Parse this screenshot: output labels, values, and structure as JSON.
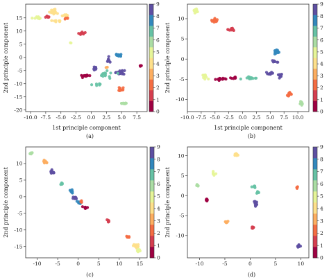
{
  "figure": {
    "captions": [
      "(a)",
      "(b)",
      "(c)",
      "(d)"
    ]
  },
  "colorbar": {
    "ticks": [
      "0",
      "1",
      "2",
      "3",
      "4",
      "5",
      "6",
      "7",
      "8",
      "9"
    ],
    "colormap": "Spectral",
    "colors": [
      "#9e0142",
      "#d53e4f",
      "#f46d43",
      "#fdae61",
      "#fee08b",
      "#e6f598",
      "#abdda4",
      "#66c2a5",
      "#3288bd",
      "#5e4fa2"
    ]
  },
  "chart_data": [
    {
      "type": "scatter",
      "caption": "(a)",
      "xlabel": "1st principle component",
      "ylabel": "2nd principle component",
      "xlim": [
        -10.8,
        9.2
      ],
      "ylim": [
        -20.6,
        20.2
      ],
      "xticks": [
        -10.0,
        -7.5,
        -5.0,
        -2.5,
        0.0,
        2.5,
        5.0,
        7.5
      ],
      "yticks": [
        -20,
        -15,
        -10,
        -5,
        0,
        5,
        10,
        15
      ],
      "clusters": [
        {
          "label": 4,
          "x": -6.3,
          "y": 17.5,
          "sx": 0.6,
          "sy": 1.0,
          "n": 14
        },
        {
          "label": 5,
          "x": -8.8,
          "y": 15.0,
          "sx": 0.8,
          "sy": 0.5,
          "n": 12
        },
        {
          "label": 4,
          "x": -4.5,
          "y": 16.0,
          "sx": 0.8,
          "sy": 0.6,
          "n": 12
        },
        {
          "label": 4,
          "x": -5.8,
          "y": 13.8,
          "sx": 0.6,
          "sy": 0.4,
          "n": 8
        },
        {
          "label": 1,
          "x": -7.2,
          "y": 15.5,
          "sx": 0.4,
          "sy": 0.4,
          "n": 8
        },
        {
          "label": 2,
          "x": -4.2,
          "y": 14.8,
          "sx": 0.3,
          "sy": 0.3,
          "n": 5
        },
        {
          "label": 1,
          "x": -1.5,
          "y": 9.0,
          "sx": 0.45,
          "sy": 0.45,
          "n": 14
        },
        {
          "label": 5,
          "x": -3.4,
          "y": 5.5,
          "sx": 0.1,
          "sy": 0.1,
          "n": 2
        },
        {
          "label": 8,
          "x": 4.5,
          "y": 0.8,
          "sx": 0.55,
          "sy": 0.55,
          "n": 20
        },
        {
          "label": 9,
          "x": 2.8,
          "y": -0.8,
          "sx": 0.3,
          "sy": 1.0,
          "n": 9
        },
        {
          "label": 9,
          "x": 0.4,
          "y": -4.0,
          "sx": 0.7,
          "sy": 0.7,
          "n": 10
        },
        {
          "label": 9,
          "x": 4.8,
          "y": -5.8,
          "sx": 0.6,
          "sy": 0.9,
          "n": 22
        },
        {
          "label": 7,
          "x": 2.6,
          "y": -6.5,
          "sx": 1.0,
          "sy": 1.0,
          "n": 14
        },
        {
          "label": 0,
          "x": -0.8,
          "y": -7.0,
          "sx": 1.0,
          "sy": 0.5,
          "n": 12
        },
        {
          "label": 3,
          "x": 2.5,
          "y": -3.8,
          "sx": 0.2,
          "sy": 0.2,
          "n": 3
        },
        {
          "label": 7,
          "x": 1.0,
          "y": -10.3,
          "sx": 0.6,
          "sy": 0.4,
          "n": 6
        },
        {
          "label": 2,
          "x": 4.8,
          "y": -12.0,
          "sx": 0.55,
          "sy": 0.8,
          "n": 12
        },
        {
          "label": 6,
          "x": 5.3,
          "y": -17.5,
          "sx": 0.5,
          "sy": 0.25,
          "n": 12
        },
        {
          "label": 0,
          "x": 8.2,
          "y": -3.2,
          "sx": 0.3,
          "sy": 0.3,
          "n": 5
        }
      ]
    },
    {
      "type": "scatter",
      "caption": "(b)",
      "xlabel": "1st principle component",
      "ylabel": "2nd principle component",
      "xlim": [
        -10.0,
        12.0
      ],
      "ylim": [
        -13.0,
        13.6
      ],
      "xticks": [
        -10.0,
        -7.5,
        -5.0,
        -2.5,
        0.0,
        2.5,
        5.0,
        7.5,
        10.0
      ],
      "yticks": [
        -10,
        -5,
        0,
        5,
        10
      ],
      "clusters": [
        {
          "label": 5,
          "x": -8.5,
          "y": 12.0,
          "sx": 0.35,
          "sy": 0.5,
          "n": 14
        },
        {
          "label": 2,
          "x": -5.0,
          "y": 9.5,
          "sx": 0.5,
          "sy": 0.4,
          "n": 14
        },
        {
          "label": 1,
          "x": -2.0,
          "y": 7.3,
          "sx": 0.5,
          "sy": 0.35,
          "n": 14
        },
        {
          "label": 8,
          "x": 6.2,
          "y": 1.8,
          "sx": 0.45,
          "sy": 0.45,
          "n": 16
        },
        {
          "label": 9,
          "x": 5.8,
          "y": -0.5,
          "sx": 0.5,
          "sy": 0.3,
          "n": 10
        },
        {
          "label": 5,
          "x": -6.8,
          "y": -4.5,
          "sx": 0.5,
          "sy": 0.8,
          "n": 10
        },
        {
          "label": 0,
          "x": -4.0,
          "y": -5.0,
          "sx": 0.7,
          "sy": 0.25,
          "n": 16
        },
        {
          "label": 0,
          "x": -1.5,
          "y": -4.6,
          "sx": 0.5,
          "sy": 0.3,
          "n": 8
        },
        {
          "label": 7,
          "x": 1.5,
          "y": -4.7,
          "sx": 1.3,
          "sy": 0.5,
          "n": 16
        },
        {
          "label": 9,
          "x": 5.0,
          "y": -3.5,
          "sx": 0.5,
          "sy": 0.5,
          "n": 10
        },
        {
          "label": 9,
          "x": 6.8,
          "y": -4.2,
          "sx": 0.4,
          "sy": 0.6,
          "n": 14
        },
        {
          "label": 2,
          "x": 8.5,
          "y": -8.7,
          "sx": 0.45,
          "sy": 0.45,
          "n": 14
        },
        {
          "label": 6,
          "x": 10.6,
          "y": -11.0,
          "sx": 0.35,
          "sy": 0.35,
          "n": 12
        }
      ]
    },
    {
      "type": "scatter",
      "caption": "(c)",
      "xlabel": "",
      "ylabel": "2nd principle component",
      "xlim": [
        -12.8,
        16.8
      ],
      "ylim": [
        -18.4,
        15.0
      ],
      "xticks": [
        -10,
        -5,
        0,
        5,
        10,
        15
      ],
      "yticks": [
        -15,
        -10,
        -5,
        0,
        5,
        10
      ],
      "clusters": [
        {
          "label": 6,
          "x": -11.5,
          "y": 13.2,
          "sx": 0.3,
          "sy": 0.35,
          "n": 10
        },
        {
          "label": 3,
          "x": -8.0,
          "y": 10.5,
          "sx": 0.5,
          "sy": 0.35,
          "n": 12
        },
        {
          "label": 9,
          "x": -6.2,
          "y": 7.5,
          "sx": 0.5,
          "sy": 0.6,
          "n": 16
        },
        {
          "label": 7,
          "x": -4.0,
          "y": 4.0,
          "sx": 0.3,
          "sy": 0.3,
          "n": 8
        },
        {
          "label": 8,
          "x": -1.5,
          "y": 1.5,
          "sx": 0.35,
          "sy": 0.5,
          "n": 10
        },
        {
          "label": 9,
          "x": -0.8,
          "y": -0.5,
          "sx": 0.5,
          "sy": 0.4,
          "n": 12
        },
        {
          "label": 8,
          "x": 0.2,
          "y": -1.8,
          "sx": 0.5,
          "sy": 0.4,
          "n": 10
        },
        {
          "label": 2,
          "x": 0.8,
          "y": -1.5,
          "sx": 0.3,
          "sy": 0.3,
          "n": 6
        },
        {
          "label": 0,
          "x": 1.8,
          "y": -3.2,
          "sx": 0.5,
          "sy": 0.35,
          "n": 10
        },
        {
          "label": 1,
          "x": 7.3,
          "y": -7.3,
          "sx": 0.35,
          "sy": 0.3,
          "n": 10
        },
        {
          "label": 2,
          "x": 12.2,
          "y": -12.0,
          "sx": 0.35,
          "sy": 0.35,
          "n": 10
        },
        {
          "label": 4,
          "x": 14.2,
          "y": -15.0,
          "sx": 0.6,
          "sy": 0.6,
          "n": 12
        },
        {
          "label": 5,
          "x": 14.8,
          "y": -16.2,
          "sx": 0.5,
          "sy": 0.5,
          "n": 10
        }
      ]
    },
    {
      "type": "scatter",
      "caption": "(d)",
      "xlabel": "",
      "ylabel": "2nd principle component",
      "xlim": [
        -12.4,
        11.6
      ],
      "ylim": [
        -15.6,
        12.2
      ],
      "xticks": [
        -10,
        -5,
        0,
        5,
        10
      ],
      "yticks": [
        -10,
        -5,
        0,
        5,
        10
      ],
      "clusters": [
        {
          "label": 4,
          "x": -2.8,
          "y": 10.3,
          "sx": 0.25,
          "sy": 0.35,
          "n": 10
        },
        {
          "label": 5,
          "x": -7.2,
          "y": 5.5,
          "sx": 0.3,
          "sy": 0.35,
          "n": 8
        },
        {
          "label": 6,
          "x": -10.4,
          "y": 2.5,
          "sx": 0.2,
          "sy": 0.3,
          "n": 8
        },
        {
          "label": 7,
          "x": 0.8,
          "y": 2.2,
          "sx": 0.3,
          "sy": 0.3,
          "n": 8
        },
        {
          "label": 7,
          "x": 1.5,
          "y": 0.8,
          "sx": 0.3,
          "sy": 0.25,
          "n": 6
        },
        {
          "label": 9,
          "x": 1.1,
          "y": -2.0,
          "sx": 0.35,
          "sy": 0.6,
          "n": 20
        },
        {
          "label": 0,
          "x": -8.5,
          "y": -1.0,
          "sx": 0.3,
          "sy": 0.2,
          "n": 8
        },
        {
          "label": 3,
          "x": -4.7,
          "y": -6.6,
          "sx": 0.2,
          "sy": 0.3,
          "n": 8
        },
        {
          "label": 1,
          "x": 0.5,
          "y": -8.0,
          "sx": 0.2,
          "sy": 0.25,
          "n": 8
        },
        {
          "label": 2,
          "x": 9.3,
          "y": 2.0,
          "sx": 0.15,
          "sy": 0.2,
          "n": 5
        },
        {
          "label": 9,
          "x": 9.6,
          "y": -12.6,
          "sx": 0.35,
          "sy": 0.3,
          "n": 14
        }
      ]
    }
  ]
}
